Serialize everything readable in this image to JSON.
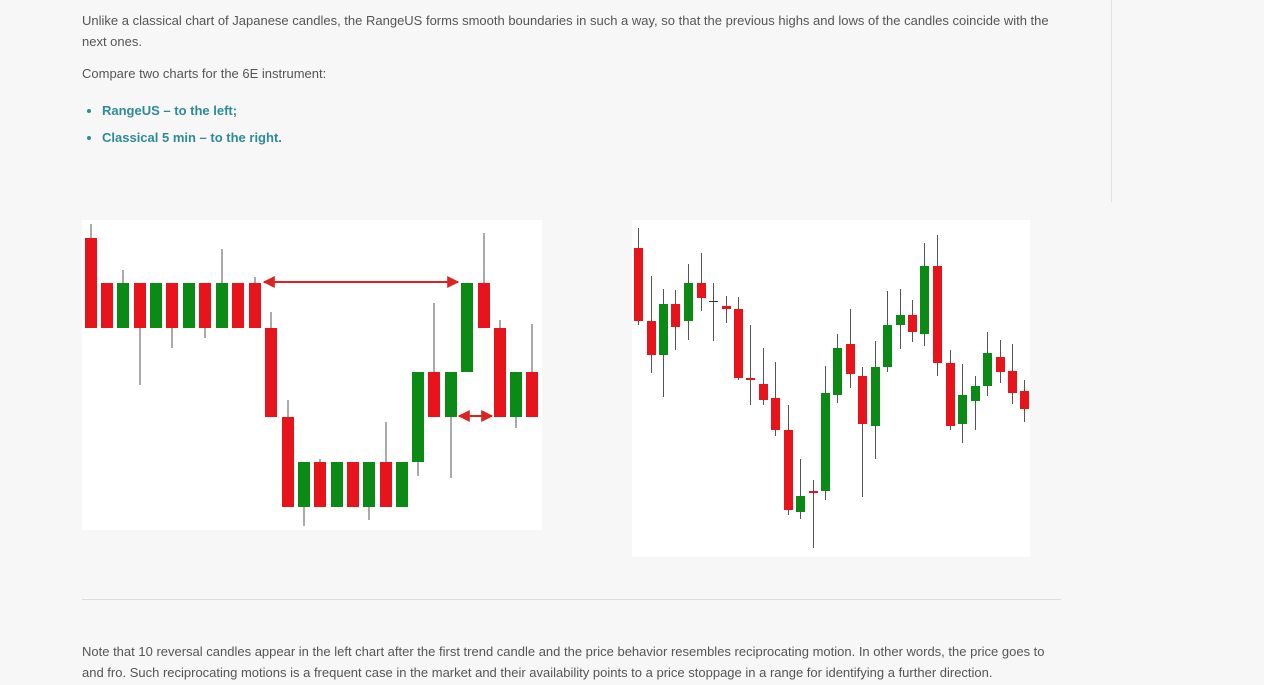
{
  "intro": "Unlike a classical chart of Japanese candles, the RangeUS forms smooth boundaries in such a way, so that the previous highs and lows of the candles coincide with the next ones.",
  "compare": "Compare two charts for the 6E instrument:",
  "bullets": [
    "RangeUS – to the left;",
    "Classical 5 min – to the right."
  ],
  "note": "Note that 10 reversal candles appear in the left chart after the first trend candle and the price behavior resembles reciprocating motion. In other words, the price goes to and fro. Such reciprocating motions is a frequent case in the market and their availability points to a price stoppage in a range for identifying a further direction."
}
